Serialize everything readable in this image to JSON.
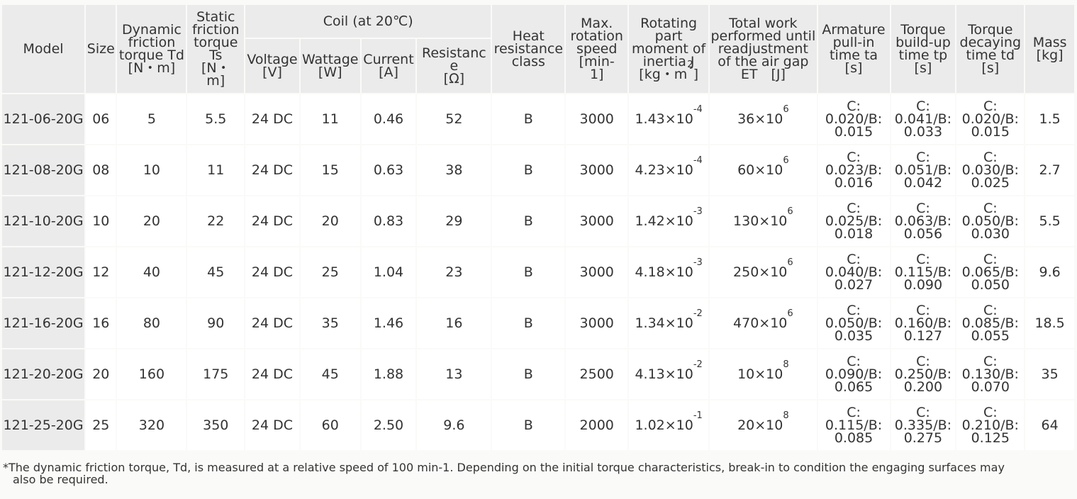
{
  "header": {
    "model": "Model",
    "size": "Size",
    "dynamic": [
      "Dynamic",
      "friction",
      "torque Td",
      "[N・m]"
    ],
    "static": [
      "Static",
      "friction",
      "torque",
      "Ts",
      "[N・",
      "m]"
    ],
    "coil": "Coil (at 20℃)",
    "voltage": [
      "Voltage",
      "[V]"
    ],
    "wattage": [
      "Wattage",
      "[W]"
    ],
    "current": [
      "Current",
      "[A]"
    ],
    "resistance": [
      "Resistance",
      "[Ω]"
    ],
    "heat": [
      "Heat",
      "resistance",
      "class"
    ],
    "speed": [
      "Max.",
      "rotation",
      "speed",
      "[min-",
      "1]"
    ],
    "inertia": [
      "Rotating",
      "part",
      "moment of",
      "inertia J",
      "[kg・m",
      "2",
      "]"
    ],
    "work": [
      "Total work",
      "performed until",
      "readjustment",
      "of the air gap",
      "ET　[J]"
    ],
    "armature": [
      "Armature",
      "pull-in",
      "time ta",
      "[s]"
    ],
    "buildup": [
      "Torque",
      "build-up",
      "time tp",
      "[s]"
    ],
    "decay": [
      "Torque",
      "decaying",
      "time td",
      "[s]"
    ],
    "mass": [
      "Mass",
      "[kg]"
    ]
  },
  "rows": [
    {
      "model": "121-06-20G",
      "size": "06",
      "td": "5",
      "ts": "5.5",
      "voltage": "24 DC",
      "wattage": "11",
      "current": "0.46",
      "resistance": "52",
      "heat": "B",
      "speed": "3000",
      "inertia_base": "1.43×10",
      "inertia_exp": "-4",
      "work_base": "36×10",
      "work_exp": "6",
      "ta": [
        "C:",
        "0.020/B:",
        "0.015"
      ],
      "tp": [
        "C:",
        "0.041/B:",
        "0.033"
      ],
      "tdd": [
        "C:",
        "0.020/B:",
        "0.015"
      ],
      "mass": "1.5"
    },
    {
      "model": "121-08-20G",
      "size": "08",
      "td": "10",
      "ts": "11",
      "voltage": "24 DC",
      "wattage": "15",
      "current": "0.63",
      "resistance": "38",
      "heat": "B",
      "speed": "3000",
      "inertia_base": "4.23×10",
      "inertia_exp": "-4",
      "work_base": "60×10",
      "work_exp": "6",
      "ta": [
        "C:",
        "0.023/B:",
        "0.016"
      ],
      "tp": [
        "C:",
        "0.051/B:",
        "0.042"
      ],
      "tdd": [
        "C:",
        "0.030/B:",
        "0.025"
      ],
      "mass": "2.7"
    },
    {
      "model": "121-10-20G",
      "size": "10",
      "td": "20",
      "ts": "22",
      "voltage": "24 DC",
      "wattage": "20",
      "current": "0.83",
      "resistance": "29",
      "heat": "B",
      "speed": "3000",
      "inertia_base": "1.42×10",
      "inertia_exp": "-3",
      "work_base": "130×10",
      "work_exp": "6",
      "ta": [
        "C:",
        "0.025/B:",
        "0.018"
      ],
      "tp": [
        "C:",
        "0.063/B:",
        "0.056"
      ],
      "tdd": [
        "C:",
        "0.050/B:",
        "0.030"
      ],
      "mass": "5.5"
    },
    {
      "model": "121-12-20G",
      "size": "12",
      "td": "40",
      "ts": "45",
      "voltage": "24 DC",
      "wattage": "25",
      "current": "1.04",
      "resistance": "23",
      "heat": "B",
      "speed": "3000",
      "inertia_base": "4.18×10",
      "inertia_exp": "-3",
      "work_base": "250×10",
      "work_exp": "6",
      "ta": [
        "C:",
        "0.040/B:",
        "0.027"
      ],
      "tp": [
        "C:",
        "0.115/B:",
        "0.090"
      ],
      "tdd": [
        "C:",
        "0.065/B:",
        "0.050"
      ],
      "mass": "9.6"
    },
    {
      "model": "121-16-20G",
      "size": "16",
      "td": "80",
      "ts": "90",
      "voltage": "24 DC",
      "wattage": "35",
      "current": "1.46",
      "resistance": "16",
      "heat": "B",
      "speed": "3000",
      "inertia_base": "1.34×10",
      "inertia_exp": "-2",
      "work_base": "470×10",
      "work_exp": "6",
      "ta": [
        "C:",
        "0.050/B:",
        "0.035"
      ],
      "tp": [
        "C:",
        "0.160/B:",
        "0.127"
      ],
      "tdd": [
        "C:",
        "0.085/B:",
        "0.055"
      ],
      "mass": "18.5"
    },
    {
      "model": "121-20-20G",
      "size": "20",
      "td": "160",
      "ts": "175",
      "voltage": "24 DC",
      "wattage": "45",
      "current": "1.88",
      "resistance": "13",
      "heat": "B",
      "speed": "2500",
      "inertia_base": "4.13×10",
      "inertia_exp": "-2",
      "work_base": "10×10",
      "work_exp": "8",
      "ta": [
        "C:",
        "0.090/B:",
        "0.065"
      ],
      "tp": [
        "C:",
        "0.250/B:",
        "0.200"
      ],
      "tdd": [
        "C:",
        "0.130/B:",
        "0.070"
      ],
      "mass": "35"
    },
    {
      "model": "121-25-20G",
      "size": "25",
      "td": "320",
      "ts": "350",
      "voltage": "24 DC",
      "wattage": "60",
      "current": "2.50",
      "resistance": "9.6",
      "heat": "B",
      "speed": "2000",
      "inertia_base": "1.02×10",
      "inertia_exp": "-1",
      "work_base": "20×10",
      "work_exp": "8",
      "ta": [
        "C:",
        "0.115/B:",
        "0.085"
      ],
      "tp": [
        "C:",
        "0.335/B:",
        "0.275"
      ],
      "tdd": [
        "C:",
        "0.210/B:",
        "0.125"
      ],
      "mass": "64"
    }
  ],
  "footnote": {
    "line1": "*The dynamic friction torque, Td, is measured at a relative speed of 100 min-1. Depending on the initial torque characteristics, break-in to condition the engaging surfaces may",
    "line2": "also be required."
  }
}
